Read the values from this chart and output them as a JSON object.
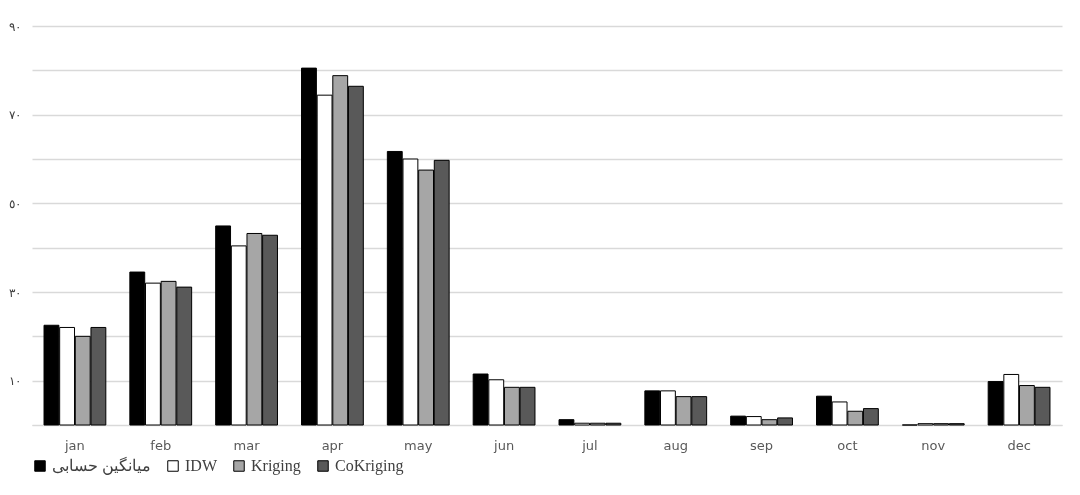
{
  "chart_data": {
    "type": "bar",
    "categories": [
      "jan",
      "feb",
      "mar",
      "apr",
      "may",
      "jun",
      "jul",
      "aug",
      "sep",
      "oct",
      "nov",
      "dec"
    ],
    "series": [
      {
        "name": "میانگین حسابی",
        "color": "#000000",
        "values": [
          22.5,
          34.5,
          44.9,
          80.5,
          61.7,
          11.5,
          1.2,
          7.7,
          2.0,
          6.5,
          0,
          9.8
        ]
      },
      {
        "name": "IDW",
        "color": "#ffffff",
        "values": [
          22.0,
          32.0,
          40.4,
          74.4,
          60.0,
          10.2,
          0.4,
          7.7,
          1.9,
          5.2,
          0.3,
          11.4
        ]
      },
      {
        "name": "Kriging",
        "color": "#a6a6a6",
        "values": [
          20.0,
          32.4,
          43.2,
          78.8,
          57.5,
          8.5,
          0.4,
          6.4,
          1.2,
          3.1,
          0.3,
          8.9
        ]
      },
      {
        "name": "CoKriging",
        "color": "#595959",
        "values": [
          22.0,
          31.1,
          42.8,
          76.4,
          59.7,
          8.5,
          0.4,
          6.4,
          1.6,
          3.7,
          0.3,
          8.5
        ]
      }
    ],
    "ylim": [
      0,
      90
    ],
    "yticks": [
      {
        "value": 0,
        "label": null
      },
      {
        "value": 10,
        "label": "١٠"
      },
      {
        "value": 20,
        "label": null
      },
      {
        "value": 30,
        "label": "٣٠"
      },
      {
        "value": 40,
        "label": null
      },
      {
        "value": 50,
        "label": "٥٠"
      },
      {
        "value": 60,
        "label": null
      },
      {
        "value": 70,
        "label": "٧٠"
      },
      {
        "value": 80,
        "label": null
      },
      {
        "value": 90,
        "label": "٩٠"
      }
    ],
    "grid": "y",
    "legend": "bottom"
  }
}
